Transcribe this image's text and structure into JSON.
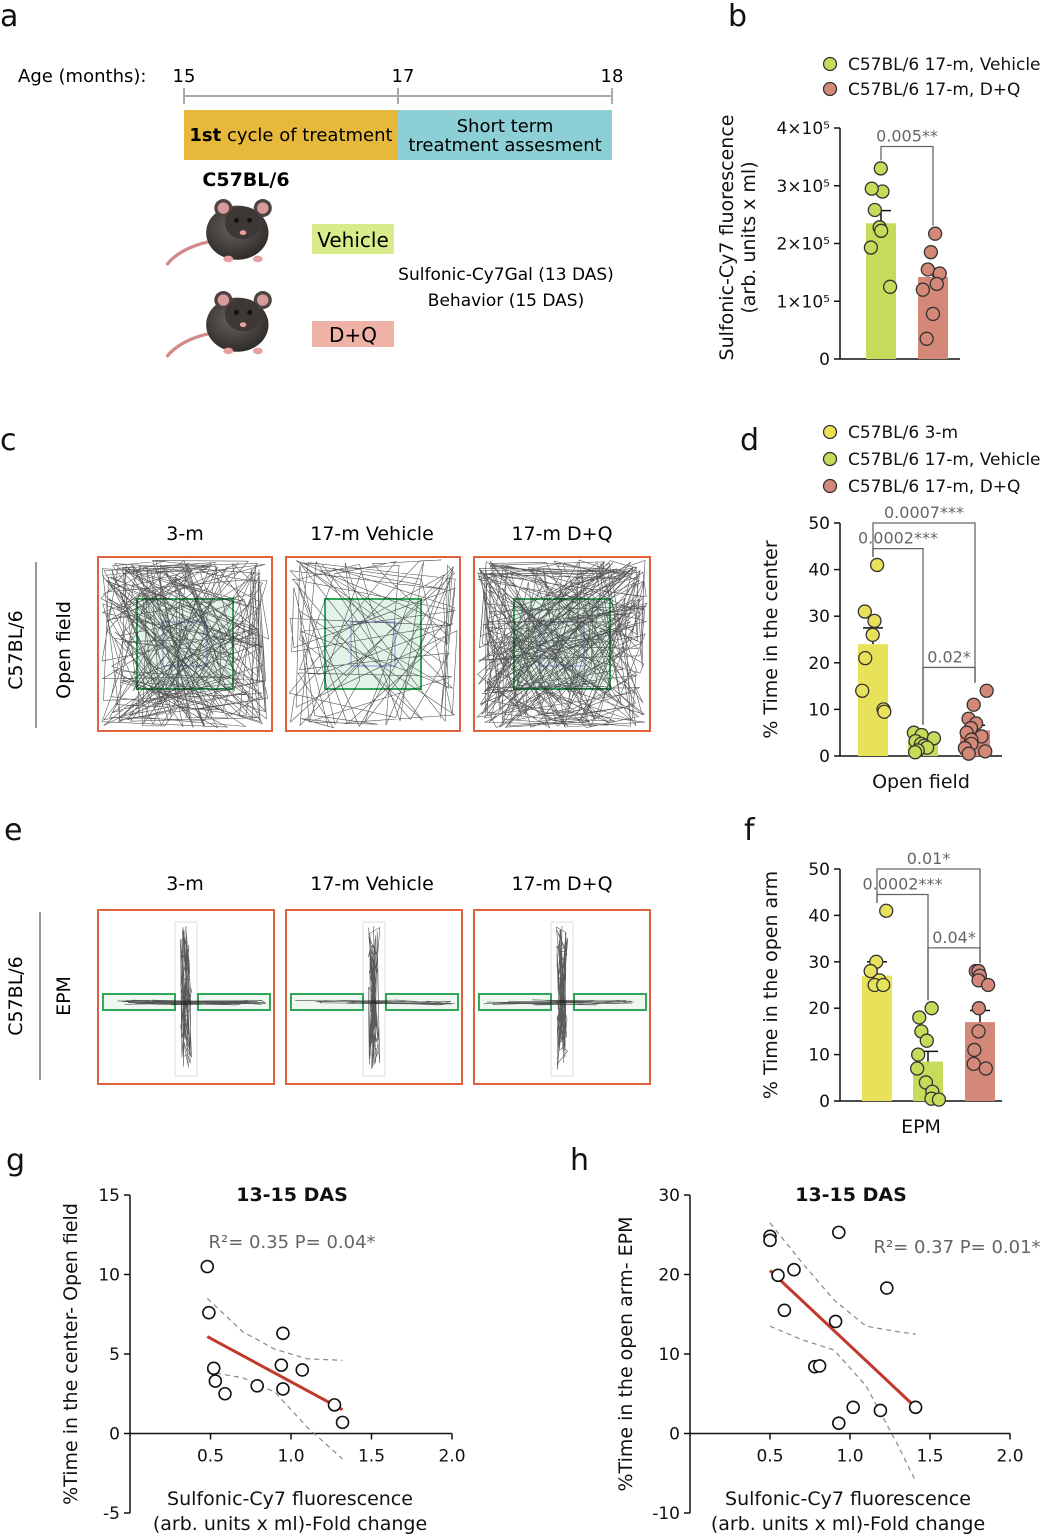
{
  "colors": {
    "young": "#e8e15a",
    "vehicle": "#c4dc5a",
    "dq": "#d48878",
    "arena_border": "#e0623c",
    "zone_green": "#2fa85a",
    "timeline_gold": "#e6b83c",
    "timeline_teal": "#8ccfd4",
    "vehicle_box": "#d9ec8c",
    "dq_box": "#eeb2a6",
    "fit_line": "#c0392b"
  },
  "panel_labels": {
    "a": "a",
    "b": "b",
    "c": "c",
    "d": "d",
    "e": "e",
    "f": "f",
    "g": "g",
    "h": "h"
  },
  "panel_a": {
    "age_label": "Age (months):",
    "age_ticks": [
      "15",
      "17",
      "18"
    ],
    "cycle_bold": "1st",
    "cycle_rest": " cycle of treatment",
    "short_term_line1": "Short term",
    "short_term_line2": "treatment assesment",
    "strain": "C57BL/6",
    "vehicle_label": "Vehicle",
    "dq_label": "D+Q",
    "assay_line1": "Sulfonic-Cy7Gal (13 DAS)",
    "assay_line2": "Behavior (15 DAS)"
  },
  "panel_c": {
    "columns": [
      "3-m",
      "17-m Vehicle",
      "17-m D+Q"
    ],
    "side_strain": "C57BL/6",
    "side_test": "Open field"
  },
  "panel_e": {
    "columns": [
      "3-m",
      "17-m Vehicle",
      "17-m D+Q"
    ],
    "side_strain": "C57BL/6",
    "side_test": "EPM"
  },
  "chart_data": [
    {
      "panel": "b",
      "type": "bar",
      "ylabel_line1": "Sulfonic-Cy7 fluorescence",
      "ylabel_line2": "(arb. units x ml)",
      "ylim": [
        0,
        400000
      ],
      "yticks": [
        {
          "value": 0,
          "label": "0"
        },
        {
          "value": 100000,
          "label": "1×10⁵"
        },
        {
          "value": 200000,
          "label": "2×10⁵"
        },
        {
          "value": 300000,
          "label": "3×10⁵"
        },
        {
          "value": 400000,
          "label": "4×10⁵"
        }
      ],
      "legend": [
        "C57BL/6 17-m, Vehicle",
        "C57BL/6 17-m, D+Q"
      ],
      "series": [
        {
          "name": "C57BL/6 17-m, Vehicle",
          "color_key": "vehicle",
          "mean": 235000,
          "sem": 22000,
          "points": [
            330000,
            290000,
            295000,
            258000,
            228000,
            222000,
            193000,
            125000
          ]
        },
        {
          "name": "C57BL/6 17-m, D+Q",
          "color_key": "dq",
          "mean": 142000,
          "sem": 15000,
          "points": [
            217000,
            185000,
            155000,
            148000,
            130000,
            120000,
            78000,
            35000
          ]
        }
      ],
      "comparisons": [
        {
          "from": 0,
          "to": 1,
          "label": "0.005**",
          "y": 368000
        }
      ]
    },
    {
      "panel": "d",
      "type": "bar",
      "xlabel": "Open field",
      "ylabel": "% Time in the center",
      "ylim": [
        0,
        50
      ],
      "yticks": [
        {
          "value": 0,
          "label": "0"
        },
        {
          "value": 10,
          "label": "10"
        },
        {
          "value": 20,
          "label": "20"
        },
        {
          "value": 30,
          "label": "30"
        },
        {
          "value": 40,
          "label": "40"
        },
        {
          "value": 50,
          "label": "50"
        }
      ],
      "legend": [
        "C57BL/6 3-m",
        "C57BL/6 17-m, Vehicle",
        "C57BL/6 17-m, D+Q"
      ],
      "series": [
        {
          "name": "C57BL/6 3-m",
          "color_key": "young",
          "mean": 24,
          "sem": 3.5,
          "points": [
            41,
            31,
            29,
            26,
            21,
            14,
            10,
            9.5
          ]
        },
        {
          "name": "C57BL/6 17-m, Vehicle",
          "color_key": "vehicle",
          "mean": 3,
          "sem": 0.6,
          "points": [
            5,
            4.5,
            3.8,
            3.2,
            2.6,
            2.2,
            1.8,
            1.2,
            0.8
          ]
        },
        {
          "name": "C57BL/6 17-m, D+Q",
          "color_key": "dq",
          "mean": 5.5,
          "sem": 1.1,
          "points": [
            14,
            11,
            8,
            7,
            6,
            5,
            4.2,
            3.5,
            2.6,
            1.7,
            1,
            0.5
          ]
        }
      ],
      "comparisons": [
        {
          "from": 0,
          "to": 2,
          "label": "0.0007***",
          "y": 50
        },
        {
          "from": 0,
          "to": 1,
          "label": "0.0002***",
          "y": 44.5
        },
        {
          "from": 1,
          "to": 2,
          "label": "0.02*",
          "y": 19
        }
      ]
    },
    {
      "panel": "f",
      "type": "bar",
      "xlabel": "EPM",
      "ylabel": "% Time in the open arm",
      "ylim": [
        0,
        50
      ],
      "yticks": [
        {
          "value": 0,
          "label": "0"
        },
        {
          "value": 10,
          "label": "10"
        },
        {
          "value": 20,
          "label": "20"
        },
        {
          "value": 30,
          "label": "30"
        },
        {
          "value": 40,
          "label": "40"
        },
        {
          "value": 50,
          "label": "50"
        }
      ],
      "series": [
        {
          "name": "C57BL/6 3-m",
          "color_key": "young",
          "mean": 27,
          "sem": 3,
          "points": [
            41,
            30,
            28,
            26,
            25,
            25
          ]
        },
        {
          "name": "C57BL/6 17-m, Vehicle",
          "color_key": "vehicle",
          "mean": 8.5,
          "sem": 2.2,
          "points": [
            20,
            18,
            15,
            13,
            10,
            7,
            4,
            2,
            0.5,
            0.3
          ]
        },
        {
          "name": "C57BL/6 17-m, D+Q",
          "color_key": "dq",
          "mean": 17,
          "sem": 2.5,
          "points": [
            28,
            28,
            27,
            26,
            25,
            20,
            15,
            11,
            8,
            7
          ]
        }
      ],
      "comparisons": [
        {
          "from": 0,
          "to": 2,
          "label": "0.01*",
          "y": 50
        },
        {
          "from": 0,
          "to": 1,
          "label": "0.0002***",
          "y": 44.5
        },
        {
          "from": 1,
          "to": 2,
          "label": "0.04*",
          "y": 33
        }
      ]
    },
    {
      "panel": "g",
      "type": "scatter",
      "title": "13-15 DAS",
      "stat": "R²= 0.35  P= 0.04*",
      "xlabel_line1": "Sulfonic-Cy7 fluorescence",
      "xlabel_line2": "(arb. units x ml)-Fold change",
      "ylabel": "%Time in the center- Open field",
      "xlim": [
        0,
        2.0
      ],
      "ylim": [
        -5,
        15
      ],
      "xticks": [
        {
          "value": 0.5,
          "label": "0.5"
        },
        {
          "value": 1.0,
          "label": "1.0"
        },
        {
          "value": 1.5,
          "label": "1.5"
        },
        {
          "value": 2.0,
          "label": "2.0"
        }
      ],
      "yticks": [
        {
          "value": -5,
          "label": "-5"
        },
        {
          "value": 0,
          "label": "0"
        },
        {
          "value": 5,
          "label": "5"
        },
        {
          "value": 10,
          "label": "10"
        },
        {
          "value": 15,
          "label": "15"
        }
      ],
      "points": [
        {
          "x": 0.48,
          "y": 10.5
        },
        {
          "x": 0.49,
          "y": 7.6
        },
        {
          "x": 0.52,
          "y": 4.1
        },
        {
          "x": 0.53,
          "y": 3.3
        },
        {
          "x": 0.59,
          "y": 2.5
        },
        {
          "x": 0.79,
          "y": 3.0
        },
        {
          "x": 0.94,
          "y": 4.3
        },
        {
          "x": 0.95,
          "y": 6.3
        },
        {
          "x": 0.95,
          "y": 2.8
        },
        {
          "x": 1.07,
          "y": 4.0
        },
        {
          "x": 1.27,
          "y": 1.8
        },
        {
          "x": 1.32,
          "y": 0.7
        }
      ],
      "fit": {
        "x": [
          0.48,
          1.32
        ],
        "y": [
          6.1,
          1.5
        ]
      },
      "ci_upper": {
        "x": [
          0.48,
          0.7,
          0.9,
          1.1,
          1.32
        ],
        "y": [
          8.5,
          6.4,
          5.3,
          4.7,
          4.6
        ]
      },
      "ci_lower": {
        "x": [
          0.48,
          0.7,
          0.9,
          1.1,
          1.32
        ],
        "y": [
          3.9,
          3.5,
          2.6,
          0.4,
          -1.6
        ]
      }
    },
    {
      "panel": "h",
      "type": "scatter",
      "title": "13-15 DAS",
      "stat": "R²= 0.37  P= 0.01*",
      "xlabel_line1": "Sulfonic-Cy7 fluorescence",
      "xlabel_line2": "(arb. units x ml)-Fold change",
      "ylabel": "%Time in the open arm- EPM",
      "xlim": [
        0,
        2.0
      ],
      "ylim": [
        -10,
        30
      ],
      "xticks": [
        {
          "value": 0.5,
          "label": "0.5"
        },
        {
          "value": 1.0,
          "label": "1.0"
        },
        {
          "value": 1.5,
          "label": "1.5"
        },
        {
          "value": 2.0,
          "label": "2.0"
        }
      ],
      "yticks": [
        {
          "value": -10,
          "label": "-10"
        },
        {
          "value": 0,
          "label": "0"
        },
        {
          "value": 10,
          "label": "10"
        },
        {
          "value": 20,
          "label": "20"
        },
        {
          "value": 30,
          "label": "30"
        }
      ],
      "points": [
        {
          "x": 0.5,
          "y": 24.8
        },
        {
          "x": 0.5,
          "y": 24.3
        },
        {
          "x": 0.55,
          "y": 19.9
        },
        {
          "x": 0.59,
          "y": 15.5
        },
        {
          "x": 0.65,
          "y": 20.6
        },
        {
          "x": 0.78,
          "y": 8.4
        },
        {
          "x": 0.81,
          "y": 8.5
        },
        {
          "x": 0.91,
          "y": 14.1
        },
        {
          "x": 0.93,
          "y": 25.3
        },
        {
          "x": 0.93,
          "y": 1.3
        },
        {
          "x": 1.02,
          "y": 3.3
        },
        {
          "x": 1.19,
          "y": 2.9
        },
        {
          "x": 1.23,
          "y": 18.3
        },
        {
          "x": 1.41,
          "y": 3.3
        }
      ],
      "fit": {
        "x": [
          0.5,
          1.41
        ],
        "y": [
          20.5,
          3.3
        ]
      },
      "ci_upper": {
        "x": [
          0.5,
          0.7,
          0.9,
          1.1,
          1.3,
          1.41
        ],
        "y": [
          26.5,
          21.5,
          16.8,
          13.5,
          12.8,
          12.5
        ]
      },
      "ci_lower": {
        "x": [
          0.5,
          0.7,
          0.9,
          1.1,
          1.3,
          1.41
        ],
        "y": [
          13.5,
          11.8,
          10.5,
          6.0,
          -1.5,
          -6.0
        ]
      }
    }
  ]
}
